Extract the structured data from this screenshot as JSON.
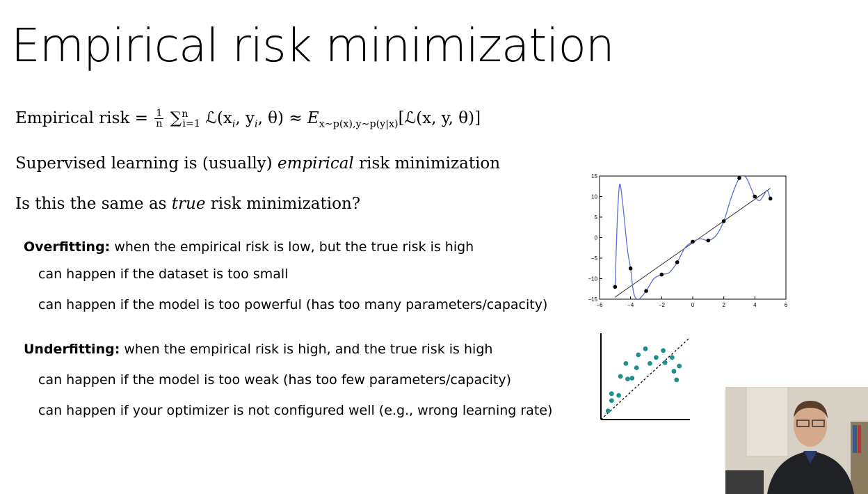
{
  "title": "Empirical risk minimization",
  "equation": {
    "lhs_label": "Empirical risk",
    "frac_num": "1",
    "frac_den": "n",
    "sum_upper": "n",
    "sum_lower": "i=1",
    "summand": "ℒ(x",
    "summand_rest": ", y",
    "summand_end": ", θ)",
    "approx_E": "E",
    "approx_sub": "x∼p(x),y∼p(y|x)",
    "approx_arg": "[ℒ(x, y, θ)]"
  },
  "line1": {
    "before": "Supervised learning is (usually) ",
    "emph": "empirical",
    "after": " risk minimization"
  },
  "line2": {
    "before": "Is this the same as ",
    "emph": "true",
    "after": " risk minimization?"
  },
  "overfitting": {
    "label": "Overfitting:",
    "text": " when the empirical risk is low, but the true risk is high",
    "items": [
      "can happen if the dataset is too small",
      "can happen if the model is too powerful (has too many parameters/capacity)"
    ]
  },
  "underfitting": {
    "label": "Underfitting:",
    "text": " when the empirical risk is high, and the true risk is high",
    "items": [
      "can happen if the model is too weak (has too few parameters/capacity)",
      "can happen if your optimizer is not configured well (e.g., wrong learning rate)"
    ]
  },
  "chart_data": [
    {
      "type": "scatter",
      "xlim": [
        -6,
        6
      ],
      "ylim": [
        -15,
        15
      ],
      "xticks": [
        -6,
        -4,
        -2,
        0,
        2,
        4,
        6
      ],
      "yticks": [
        -15,
        -10,
        -5,
        0,
        5,
        10,
        15
      ],
      "points": [
        {
          "x": -5.0,
          "y": -12.0
        },
        {
          "x": -4.0,
          "y": -7.5
        },
        {
          "x": -3.0,
          "y": -13.0
        },
        {
          "x": -2.0,
          "y": -9.0
        },
        {
          "x": -1.0,
          "y": -6.0
        },
        {
          "x": 0.0,
          "y": -1.0
        },
        {
          "x": 1.0,
          "y": -0.7
        },
        {
          "x": 2.0,
          "y": 4.0
        },
        {
          "x": 3.0,
          "y": 14.5
        },
        {
          "x": 4.0,
          "y": 10.0
        },
        {
          "x": 5.0,
          "y": 9.5
        }
      ],
      "fit_line": [
        {
          "x": -5.0,
          "y": -14.5
        },
        {
          "x": 5.0,
          "y": 12.0
        }
      ],
      "curve": [
        {
          "x": -5.0,
          "y": -12.0
        },
        {
          "x": -4.85,
          "y": 5.0
        },
        {
          "x": -4.7,
          "y": 13.0
        },
        {
          "x": -4.5,
          "y": 8.0
        },
        {
          "x": -4.2,
          "y": -3.0
        },
        {
          "x": -4.0,
          "y": -7.5
        },
        {
          "x": -3.8,
          "y": -13.5
        },
        {
          "x": -3.5,
          "y": -15.0
        },
        {
          "x": -3.0,
          "y": -13.0
        },
        {
          "x": -2.5,
          "y": -10.0
        },
        {
          "x": -2.0,
          "y": -9.0
        },
        {
          "x": -1.5,
          "y": -8.5
        },
        {
          "x": -1.0,
          "y": -6.0
        },
        {
          "x": -0.5,
          "y": -2.5
        },
        {
          "x": 0.0,
          "y": -1.0
        },
        {
          "x": 0.5,
          "y": -0.3
        },
        {
          "x": 1.0,
          "y": -0.7
        },
        {
          "x": 1.5,
          "y": 0.5
        },
        {
          "x": 2.0,
          "y": 4.0
        },
        {
          "x": 2.5,
          "y": 10.0
        },
        {
          "x": 3.0,
          "y": 14.5
        },
        {
          "x": 3.4,
          "y": 14.8
        },
        {
          "x": 3.7,
          "y": 12.5
        },
        {
          "x": 4.0,
          "y": 10.0
        },
        {
          "x": 4.3,
          "y": 9.0
        },
        {
          "x": 4.6,
          "y": 10.5
        },
        {
          "x": 4.8,
          "y": 11.5
        },
        {
          "x": 5.0,
          "y": 9.5
        }
      ],
      "point_color": "#000000",
      "curve_color": "#5b6fd6",
      "line_color": "#333333"
    },
    {
      "type": "scatter",
      "points": [
        {
          "x": 0.08,
          "y": 0.1
        },
        {
          "x": 0.12,
          "y": 0.3
        },
        {
          "x": 0.2,
          "y": 0.28
        },
        {
          "x": 0.22,
          "y": 0.5
        },
        {
          "x": 0.3,
          "y": 0.47
        },
        {
          "x": 0.28,
          "y": 0.65
        },
        {
          "x": 0.4,
          "y": 0.6
        },
        {
          "x": 0.42,
          "y": 0.75
        },
        {
          "x": 0.5,
          "y": 0.82
        },
        {
          "x": 0.55,
          "y": 0.65
        },
        {
          "x": 0.62,
          "y": 0.72
        },
        {
          "x": 0.7,
          "y": 0.8
        },
        {
          "x": 0.72,
          "y": 0.66
        },
        {
          "x": 0.8,
          "y": 0.72
        },
        {
          "x": 0.88,
          "y": 0.62
        },
        {
          "x": 0.82,
          "y": 0.56
        },
        {
          "x": 0.85,
          "y": 0.46
        },
        {
          "x": 0.12,
          "y": 0.22
        },
        {
          "x": 0.35,
          "y": 0.48
        }
      ],
      "dashed_line": [
        {
          "x": 0.0,
          "y": 0.0
        },
        {
          "x": 1.0,
          "y": 0.95
        }
      ],
      "point_color": "#1e8f8c"
    }
  ]
}
